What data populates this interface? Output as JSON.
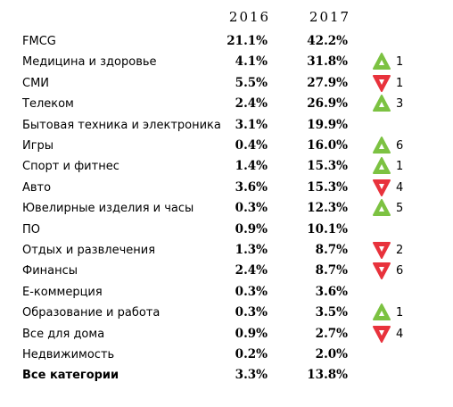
{
  "chart_data": {
    "type": "table",
    "columns": [
      "2016",
      "2017"
    ],
    "rows": [
      {
        "category": "FMCG",
        "v2016": "21.1%",
        "v2017": "42.2%",
        "change": "",
        "rank_change": ""
      },
      {
        "category": "Медицина и здоровье",
        "v2016": "4.1%",
        "v2017": "31.8%",
        "change": "up",
        "rank_change": "1"
      },
      {
        "category": "СМИ",
        "v2016": "5.5%",
        "v2017": "27.9%",
        "change": "down",
        "rank_change": "1"
      },
      {
        "category": "Телеком",
        "v2016": "2.4%",
        "v2017": "26.9%",
        "change": "up",
        "rank_change": "3"
      },
      {
        "category": "Бытовая техника и электроника",
        "v2016": "3.1%",
        "v2017": "19.9%",
        "change": "",
        "rank_change": ""
      },
      {
        "category": "Игры",
        "v2016": "0.4%",
        "v2017": "16.0%",
        "change": "up",
        "rank_change": "6"
      },
      {
        "category": "Спорт и фитнес",
        "v2016": "1.4%",
        "v2017": "15.3%",
        "change": "up",
        "rank_change": "1"
      },
      {
        "category": "Авто",
        "v2016": "3.6%",
        "v2017": "15.3%",
        "change": "down",
        "rank_change": "4"
      },
      {
        "category": "Ювелирные изделия и часы",
        "v2016": "0.3%",
        "v2017": "12.3%",
        "change": "up",
        "rank_change": "5"
      },
      {
        "category": "ПО",
        "v2016": "0.9%",
        "v2017": "10.1%",
        "change": "",
        "rank_change": ""
      },
      {
        "category": "Отдых и развлечения",
        "v2016": "1.3%",
        "v2017": "8.7%",
        "change": "down",
        "rank_change": "2"
      },
      {
        "category": "Финансы",
        "v2016": "2.4%",
        "v2017": "8.7%",
        "change": "down",
        "rank_change": "6"
      },
      {
        "category": "Е-коммерция",
        "v2016": "0.3%",
        "v2017": "3.6%",
        "change": "",
        "rank_change": ""
      },
      {
        "category": "Образование и работа",
        "v2016": "0.3%",
        "v2017": "3.5%",
        "change": "up",
        "rank_change": "1"
      },
      {
        "category": "Все для дома",
        "v2016": "0.9%",
        "v2017": "2.7%",
        "change": "down",
        "rank_change": "4"
      },
      {
        "category": "Недвижимость",
        "v2016": "0.2%",
        "v2017": "2.0%",
        "change": "",
        "rank_change": ""
      },
      {
        "category": "Все категории",
        "v2016": "3.3%",
        "v2017": "13.8%",
        "change": "",
        "rank_change": "",
        "total": true
      }
    ]
  },
  "colors": {
    "up": "#7cc242",
    "down": "#e8323c",
    "arrow_inner": "#ffffff"
  },
  "icons": {
    "up": "triangle-up-icon",
    "down": "triangle-down-icon"
  }
}
